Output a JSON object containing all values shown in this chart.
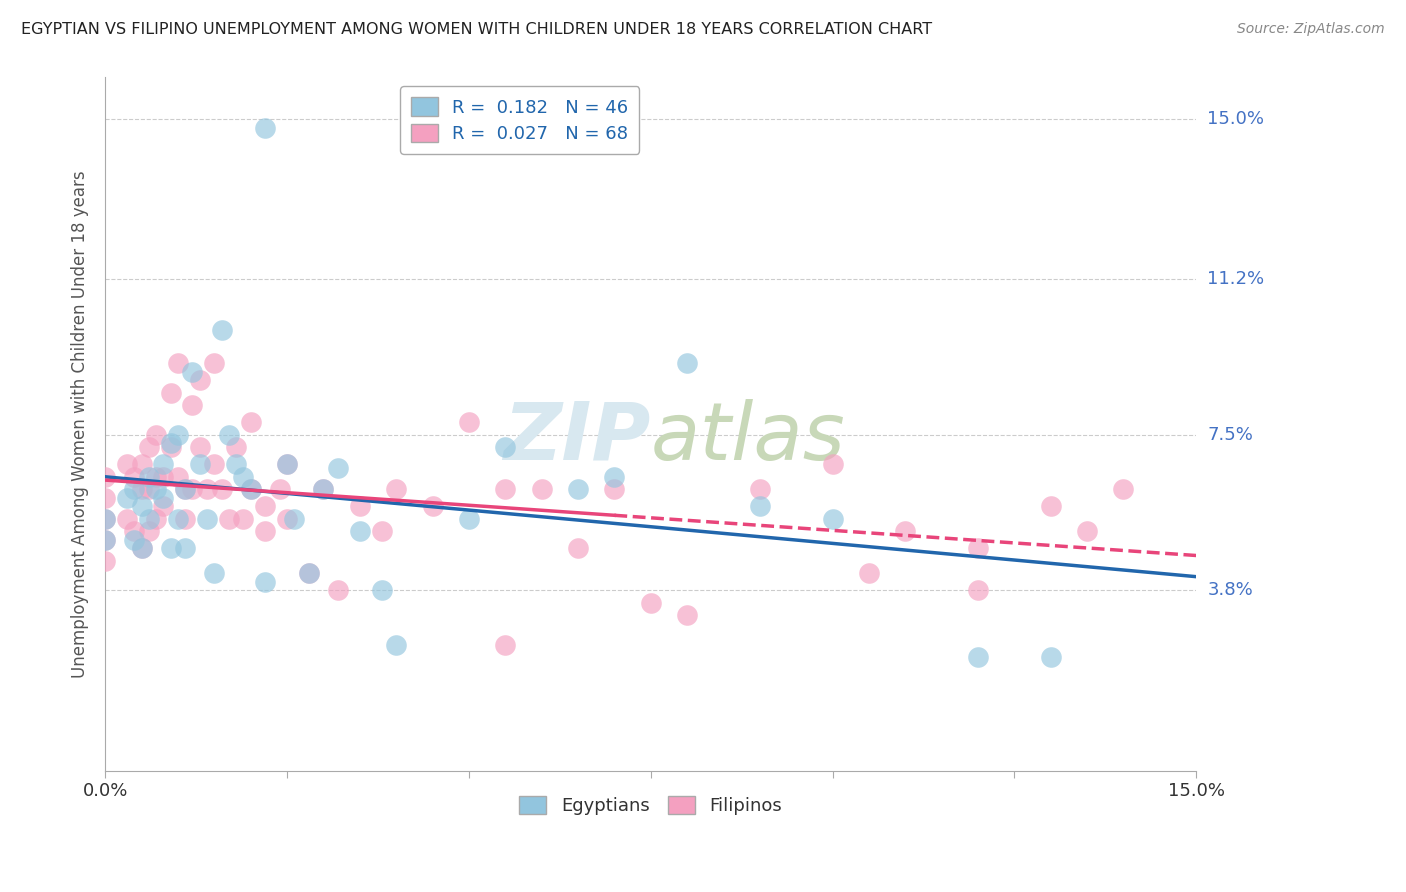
{
  "title": "EGYPTIAN VS FILIPINO UNEMPLOYMENT AMONG WOMEN WITH CHILDREN UNDER 18 YEARS CORRELATION CHART",
  "source": "Source: ZipAtlas.com",
  "ylabel": "Unemployment Among Women with Children Under 18 years",
  "xlim": [
    0,
    0.15
  ],
  "ylim": [
    -0.005,
    0.16
  ],
  "ytick_labels": [
    "3.8%",
    "7.5%",
    "11.2%",
    "15.0%"
  ],
  "yticks": [
    0.038,
    0.075,
    0.112,
    0.15
  ],
  "R_egyptian": 0.182,
  "N_egyptian": 46,
  "R_filipino": 0.027,
  "N_filipino": 68,
  "color_egyptian": "#92c5de",
  "color_filipino": "#f4a0c0",
  "line_color_egyptian": "#2166ac",
  "line_color_filipino": "#e8457a",
  "watermark_color": "#d8e8f0",
  "egyptian_x": [
    0.0,
    0.0,
    0.003,
    0.004,
    0.004,
    0.005,
    0.005,
    0.006,
    0.006,
    0.007,
    0.008,
    0.008,
    0.009,
    0.009,
    0.01,
    0.01,
    0.011,
    0.011,
    0.012,
    0.013,
    0.014,
    0.015,
    0.016,
    0.017,
    0.018,
    0.019,
    0.02,
    0.022,
    0.022,
    0.025,
    0.026,
    0.028,
    0.03,
    0.032,
    0.035,
    0.038,
    0.04,
    0.05,
    0.055,
    0.065,
    0.07,
    0.08,
    0.09,
    0.1,
    0.12,
    0.13
  ],
  "egyptian_y": [
    0.055,
    0.05,
    0.06,
    0.062,
    0.05,
    0.058,
    0.048,
    0.065,
    0.055,
    0.062,
    0.068,
    0.06,
    0.073,
    0.048,
    0.075,
    0.055,
    0.062,
    0.048,
    0.09,
    0.068,
    0.055,
    0.042,
    0.1,
    0.075,
    0.068,
    0.065,
    0.062,
    0.04,
    0.148,
    0.068,
    0.055,
    0.042,
    0.062,
    0.067,
    0.052,
    0.038,
    0.025,
    0.055,
    0.072,
    0.062,
    0.065,
    0.092,
    0.058,
    0.055,
    0.022,
    0.022
  ],
  "filipino_x": [
    0.0,
    0.0,
    0.0,
    0.0,
    0.0,
    0.003,
    0.003,
    0.004,
    0.004,
    0.005,
    0.005,
    0.005,
    0.006,
    0.006,
    0.006,
    0.007,
    0.007,
    0.007,
    0.008,
    0.008,
    0.009,
    0.009,
    0.01,
    0.01,
    0.011,
    0.011,
    0.012,
    0.012,
    0.013,
    0.013,
    0.014,
    0.015,
    0.015,
    0.016,
    0.017,
    0.018,
    0.019,
    0.02,
    0.02,
    0.022,
    0.022,
    0.024,
    0.025,
    0.025,
    0.028,
    0.03,
    0.032,
    0.035,
    0.038,
    0.04,
    0.045,
    0.05,
    0.055,
    0.055,
    0.06,
    0.065,
    0.07,
    0.075,
    0.08,
    0.09,
    0.1,
    0.105,
    0.11,
    0.12,
    0.12,
    0.13,
    0.135,
    0.14
  ],
  "filipino_y": [
    0.065,
    0.06,
    0.055,
    0.05,
    0.045,
    0.068,
    0.055,
    0.065,
    0.052,
    0.068,
    0.062,
    0.048,
    0.072,
    0.062,
    0.052,
    0.075,
    0.065,
    0.055,
    0.065,
    0.058,
    0.085,
    0.072,
    0.092,
    0.065,
    0.062,
    0.055,
    0.082,
    0.062,
    0.088,
    0.072,
    0.062,
    0.092,
    0.068,
    0.062,
    0.055,
    0.072,
    0.055,
    0.078,
    0.062,
    0.058,
    0.052,
    0.062,
    0.068,
    0.055,
    0.042,
    0.062,
    0.038,
    0.058,
    0.052,
    0.062,
    0.058,
    0.078,
    0.025,
    0.062,
    0.062,
    0.048,
    0.062,
    0.035,
    0.032,
    0.062,
    0.068,
    0.042,
    0.052,
    0.048,
    0.038,
    0.058,
    0.052,
    0.062
  ]
}
